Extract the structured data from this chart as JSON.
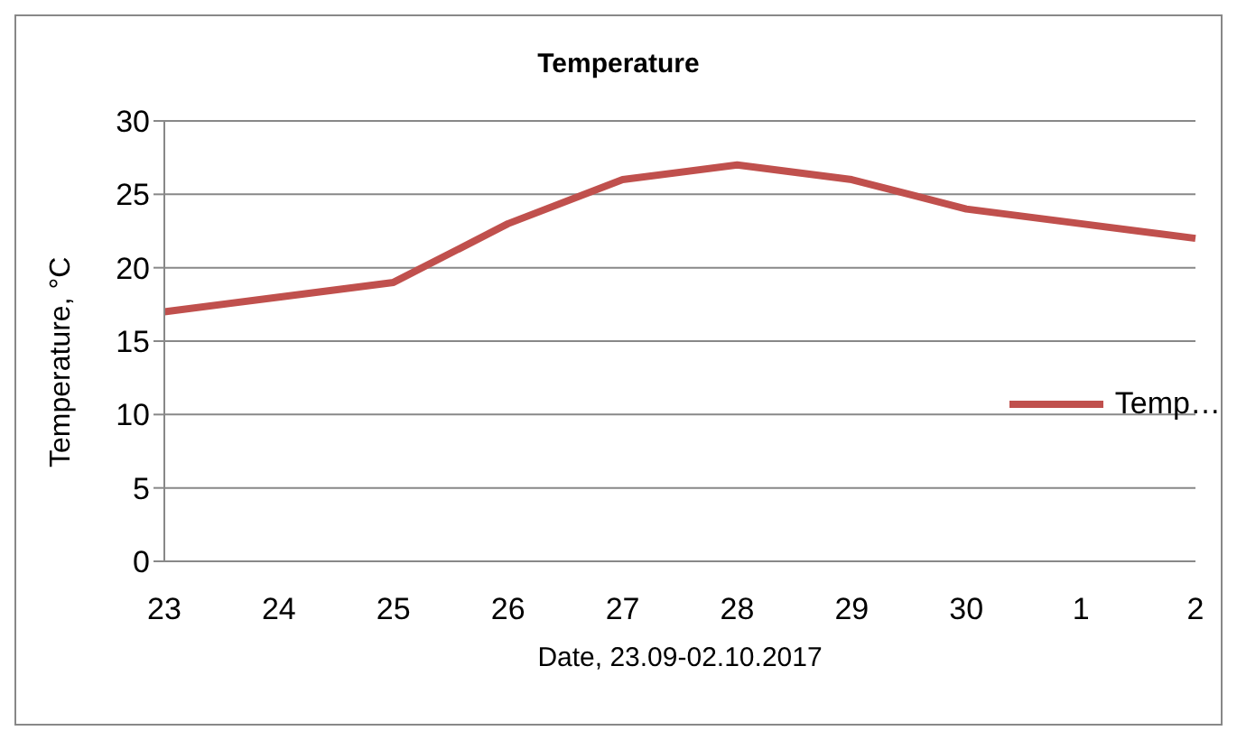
{
  "chart_data": {
    "type": "line",
    "title": "Temperature",
    "xlabel": "Date, 23.09-02.10.2017",
    "ylabel": "Temperature, °C",
    "categories": [
      "23",
      "24",
      "25",
      "26",
      "27",
      "28",
      "29",
      "30",
      "1",
      "2"
    ],
    "series": [
      {
        "name": "Temp…",
        "color": "#c0504d",
        "values": [
          17,
          18,
          19,
          23,
          26,
          27,
          26,
          24,
          23,
          22
        ]
      }
    ],
    "ylim": [
      0,
      30
    ],
    "yticks": [
      0,
      5,
      10,
      15,
      20,
      25,
      30
    ],
    "grid": "y",
    "legend": "right",
    "marker": "none",
    "line_style": "solid"
  }
}
